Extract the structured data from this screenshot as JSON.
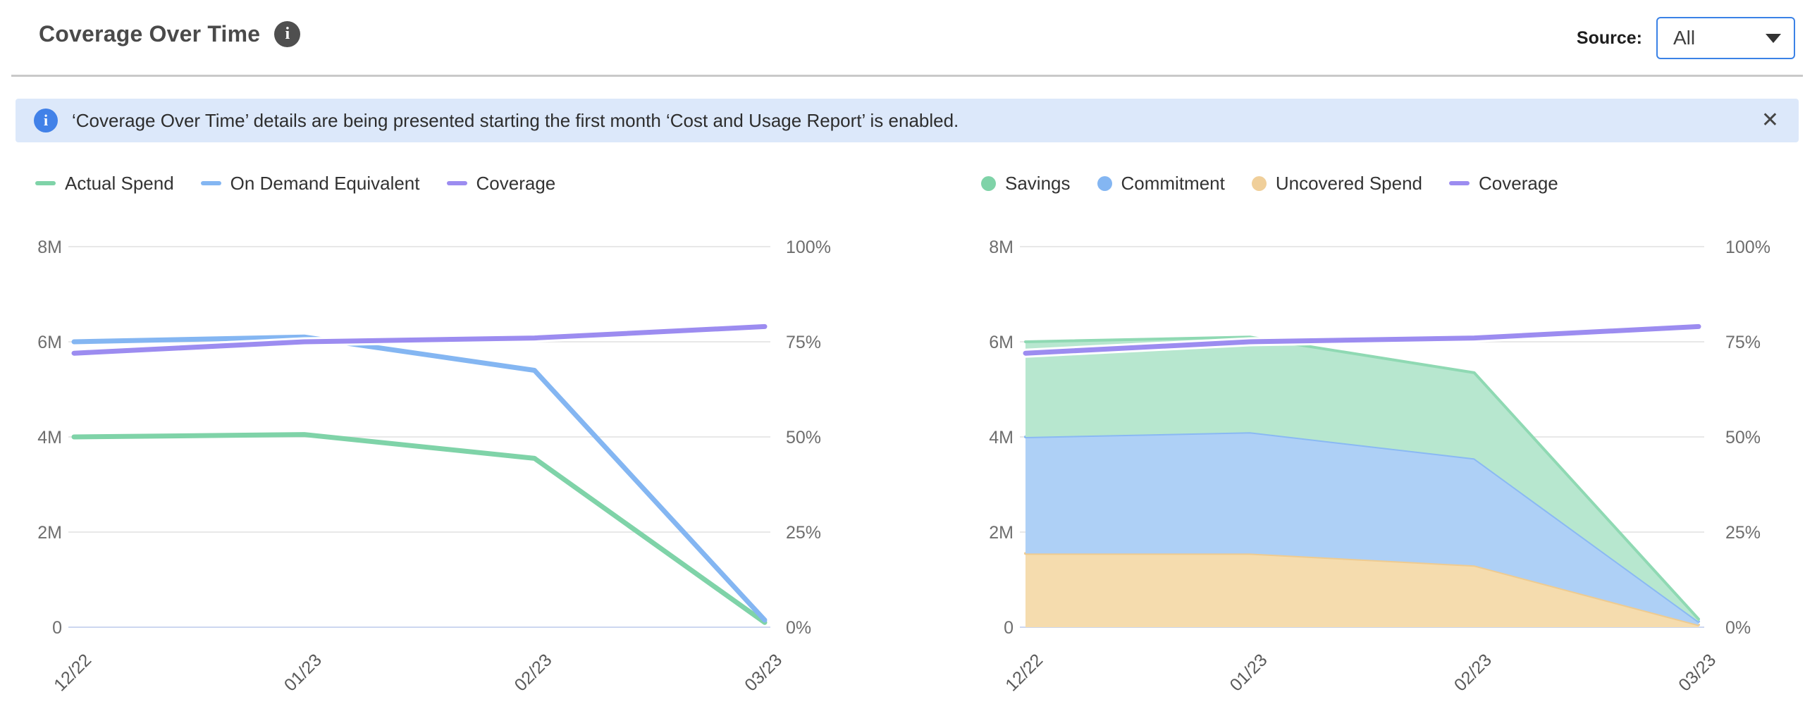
{
  "header": {
    "title": "Coverage Over Time",
    "info_icon": "i",
    "source_label": "Source:",
    "source_value": "All"
  },
  "banner": {
    "icon": "i",
    "text": "‘Coverage Over Time’ details are being presented starting the first month ‘Cost and Usage Report’ is enabled.",
    "close": "✕"
  },
  "colors": {
    "green": "#7fd3a8",
    "green_fill": "#b7e7cf",
    "green_edge": "#8fd9b3",
    "blue": "#84b6f2",
    "blue_fill": "#aed0f6",
    "blue_edge": "#8ab9f3",
    "purple": "#9c8cf0",
    "orange": "#f0cf9a",
    "orange_fill": "#f5dcae",
    "orange_edge": "#eecb91",
    "grid": "#e8e8e8",
    "zero_line": "#ccd7f0",
    "axis_text": "#6e6e6e",
    "x_label_text": "#5a5a5a",
    "banner_bg": "#dce8fa",
    "banner_icon": "#4181e8",
    "dropdown_border": "#3b82e6"
  },
  "chart_data": [
    {
      "type": "line",
      "name": "coverage-lines",
      "title": "Coverage Over Time — spend lines",
      "x_labels": [
        "12/22",
        "01/23",
        "02/23",
        "03/23"
      ],
      "y_left": {
        "ticks": [
          "8M",
          "6M",
          "4M",
          "2M",
          "0"
        ],
        "min": 0,
        "max": 8,
        "unit": "M"
      },
      "y_right": {
        "ticks": [
          "100%",
          "75%",
          "50%",
          "25%",
          "0%"
        ],
        "min": 0,
        "max": 100,
        "unit": "%"
      },
      "grid": true,
      "legend_position": "top-left",
      "legend": [
        {
          "label": "Actual Spend",
          "swatch": "line",
          "color_key": "green"
        },
        {
          "label": "On Demand Equivalent",
          "swatch": "line",
          "color_key": "blue"
        },
        {
          "label": "Coverage",
          "swatch": "line",
          "color_key": "purple"
        }
      ],
      "series": [
        {
          "name": "Actual Spend",
          "kind": "line",
          "axis": "left",
          "color_key": "green",
          "values": [
            4.0,
            4.05,
            3.55,
            0.1
          ]
        },
        {
          "name": "On Demand Equivalent",
          "kind": "line",
          "axis": "left",
          "color_key": "blue",
          "values": [
            6.0,
            6.1,
            5.4,
            0.15
          ]
        },
        {
          "name": "Coverage",
          "kind": "line",
          "axis": "right",
          "color_key": "purple",
          "halo": true,
          "values": [
            72,
            75,
            76,
            79
          ]
        }
      ]
    },
    {
      "type": "area",
      "name": "coverage-stack",
      "title": "Coverage Over Time — savings stack",
      "stacked": true,
      "x_labels": [
        "12/22",
        "01/23",
        "02/23",
        "03/23"
      ],
      "y_left": {
        "ticks": [
          "8M",
          "6M",
          "4M",
          "2M",
          "0"
        ],
        "min": 0,
        "max": 8,
        "unit": "M"
      },
      "y_right": {
        "ticks": [
          "100%",
          "75%",
          "50%",
          "25%",
          "0%"
        ],
        "min": 0,
        "max": 100,
        "unit": "%"
      },
      "grid": true,
      "legend_position": "top-left",
      "legend": [
        {
          "label": "Savings",
          "swatch": "circle",
          "color_key": "green"
        },
        {
          "label": "Commitment",
          "swatch": "circle",
          "color_key": "blue"
        },
        {
          "label": "Uncovered Spend",
          "swatch": "circle",
          "color_key": "orange"
        },
        {
          "label": "Coverage",
          "swatch": "line",
          "color_key": "purple"
        }
      ],
      "series": [
        {
          "name": "Uncovered Spend",
          "kind": "area",
          "axis": "left",
          "color_key": "orange",
          "values": [
            1.55,
            1.55,
            1.3,
            0.05
          ]
        },
        {
          "name": "Commitment",
          "kind": "area",
          "axis": "left",
          "color_key": "blue",
          "values": [
            2.45,
            2.55,
            2.25,
            0.07
          ]
        },
        {
          "name": "Savings",
          "kind": "area",
          "axis": "left",
          "color_key": "green",
          "values": [
            2.0,
            2.0,
            1.8,
            0.05
          ]
        },
        {
          "name": "Coverage",
          "kind": "line",
          "axis": "right",
          "color_key": "purple",
          "halo": true,
          "values": [
            72,
            75,
            76,
            79
          ]
        }
      ]
    }
  ]
}
